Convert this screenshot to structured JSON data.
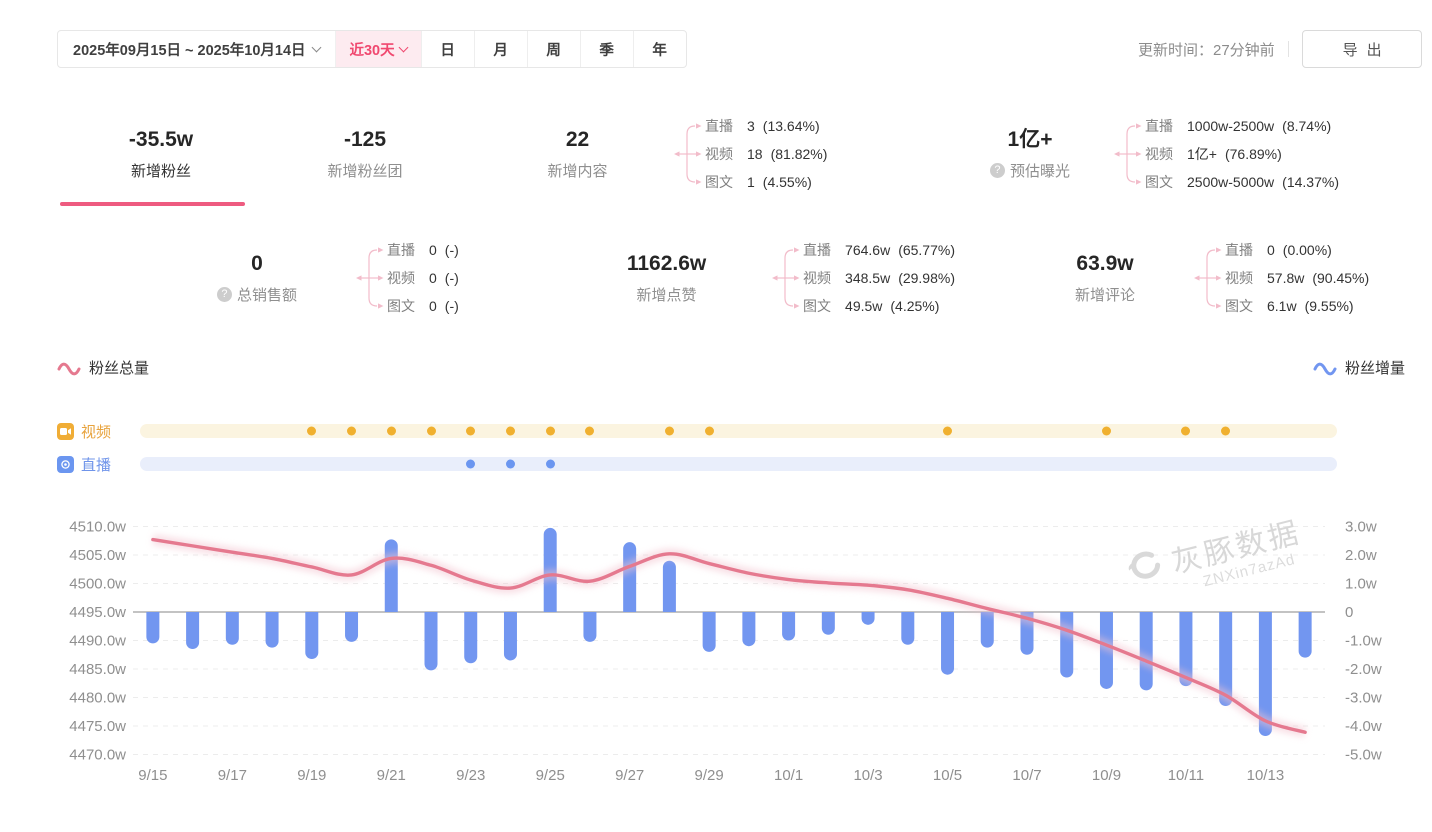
{
  "header": {
    "date_range": "2025年09月15日 ~ 2025年10月14日",
    "quick_filter": "近30天",
    "period_tabs": [
      "日",
      "月",
      "周",
      "季",
      "年"
    ],
    "update_time": "更新时间：27分钟前",
    "export_label": "导出"
  },
  "icons": {
    "help": "?"
  },
  "cards_row1": [
    {
      "value": "-35.5w",
      "label": "新增粉丝"
    },
    {
      "value": "-125",
      "label": "新增粉丝团"
    },
    {
      "value": "22",
      "label": "新增内容",
      "breakdown": [
        {
          "name": "直播",
          "value": "3",
          "pct": "(13.64%)"
        },
        {
          "name": "视频",
          "value": "18",
          "pct": "(81.82%)"
        },
        {
          "name": "图文",
          "value": "1",
          "pct": "(4.55%)"
        }
      ]
    },
    {
      "value": "1亿+",
      "label": "预估曝光",
      "breakdown": [
        {
          "name": "直播",
          "value": "1000w-2500w",
          "pct": "(8.74%)"
        },
        {
          "name": "视频",
          "value": "1亿+",
          "pct": "(76.89%)"
        },
        {
          "name": "图文",
          "value": "2500w-5000w",
          "pct": "(14.37%)"
        }
      ]
    }
  ],
  "cards_row2": [
    {
      "value": "0",
      "label": "总销售额",
      "breakdown": [
        {
          "name": "直播",
          "value": "0",
          "pct": "(-)"
        },
        {
          "name": "视频",
          "value": "0",
          "pct": "(-)"
        },
        {
          "name": "图文",
          "value": "0",
          "pct": "(-)"
        }
      ]
    },
    {
      "value": "1162.6w",
      "label": "新增点赞",
      "breakdown": [
        {
          "name": "直播",
          "value": "764.6w",
          "pct": "(65.77%)"
        },
        {
          "name": "视频",
          "value": "348.5w",
          "pct": "(29.98%)"
        },
        {
          "name": "图文",
          "value": "49.5w",
          "pct": "(4.25%)"
        }
      ]
    },
    {
      "value": "63.9w",
      "label": "新增评论",
      "breakdown": [
        {
          "name": "直播",
          "value": "0",
          "pct": "(0.00%)"
        },
        {
          "name": "视频",
          "value": "57.8w",
          "pct": "(90.45%)"
        },
        {
          "name": "图文",
          "value": "6.1w",
          "pct": "(9.55%)"
        }
      ]
    }
  ],
  "watermark": {
    "brand": "灰豚数据",
    "code": "ZNXin7azAd"
  },
  "chart_data": {
    "type": "line+bar",
    "days": [
      "9/15",
      "9/16",
      "9/17",
      "9/18",
      "9/19",
      "9/20",
      "9/21",
      "9/22",
      "9/23",
      "9/24",
      "9/25",
      "9/26",
      "9/27",
      "9/28",
      "9/29",
      "9/30",
      "10/1",
      "10/2",
      "10/3",
      "10/4",
      "10/5",
      "10/6",
      "10/7",
      "10/8",
      "10/9",
      "10/10",
      "10/11",
      "10/12",
      "10/13",
      "10/14"
    ],
    "x_tick_labels": [
      "9/15",
      "9/17",
      "9/19",
      "9/21",
      "9/23",
      "9/25",
      "9/27",
      "9/29",
      "10/1",
      "10/3",
      "10/5",
      "10/7",
      "10/9",
      "10/11",
      "10/13"
    ],
    "left_axis": {
      "title": "粉丝总量",
      "max": 4510,
      "min": 4470,
      "tick_labels": [
        "4510.0w",
        "4505.0w",
        "4500.0w",
        "4495.0w",
        "4490.0w",
        "4485.0w",
        "4480.0w",
        "4475.0w",
        "4470.0w"
      ]
    },
    "right_axis": {
      "title": "粉丝增量",
      "max": 3,
      "min": -5,
      "tick_labels": [
        "3.0w",
        "2.0w",
        "1.0w",
        "0",
        "-1.0w",
        "-2.0w",
        "-3.0w",
        "-4.0w",
        "-5.0w"
      ]
    },
    "series": [
      {
        "name": "粉丝总量",
        "type": "line",
        "axis": "left",
        "color": "#e5798f",
        "values": [
          4507.7,
          4506.6,
          4505.5,
          4504.4,
          4502.9,
          4501.5,
          4504.4,
          4503.2,
          4500.6,
          4499.2,
          4501.5,
          4500.4,
          4503.0,
          4505.2,
          4503.5,
          4501.8,
          4500.7,
          4500.1,
          4499.7,
          4498.9,
          4497.4,
          4495.6,
          4493.9,
          4491.8,
          4489.2,
          4486.4,
          4483.5,
          4480.4,
          4475.9,
          4473.9
        ]
      },
      {
        "name": "粉丝增量",
        "type": "bar",
        "axis": "right",
        "color": "#7296f0",
        "values": [
          -1.1,
          -1.3,
          -1.15,
          -1.25,
          -1.65,
          -1.05,
          2.55,
          -2.05,
          -1.8,
          -1.7,
          2.95,
          -1.05,
          2.45,
          1.8,
          -1.4,
          -1.2,
          -1.0,
          -0.8,
          -0.45,
          -1.15,
          -2.2,
          -1.25,
          -1.5,
          -2.3,
          -2.7,
          -2.75,
          -2.6,
          -3.3,
          -4.35,
          -1.6
        ]
      }
    ],
    "timeline": {
      "video": {
        "label": "视频",
        "color": "#f0b02f",
        "dot_days": [
          "9/19",
          "9/20",
          "9/21",
          "9/22",
          "9/23",
          "9/24",
          "9/25",
          "9/26",
          "9/28",
          "9/29",
          "10/5",
          "10/9",
          "10/11",
          "10/12"
        ]
      },
      "live": {
        "label": "直播",
        "color": "#6b96f0",
        "dot_days": [
          "9/23",
          "9/24",
          "9/25"
        ]
      }
    }
  }
}
